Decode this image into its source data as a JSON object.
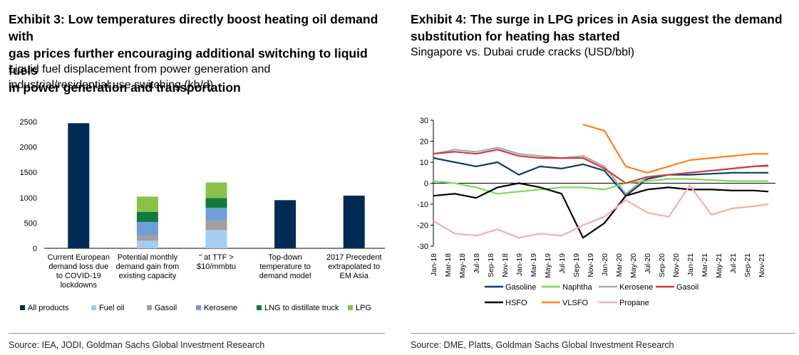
{
  "left": {
    "title_lines": [
      "Exhibit 3: Low temperatures directly boost heating oil demand with",
      "gas prices further encouraging additional switching to liquid fuels",
      "in power generation and transportation"
    ],
    "subtitle_lines": [
      "Liquid fuel displacement from power generation and",
      "industrial/residential use switching (kb/d)"
    ],
    "source": "Source: IEA, JODI, Goldman Sachs Global Investment Research"
  },
  "right": {
    "title_lines": [
      "Exhibit 4: The surge in LPG prices in Asia suggest the demand",
      "substitution for heating has started"
    ],
    "subtitle_lines": [
      "Singapore vs. Dubai crude cracks (USD/bbl)"
    ],
    "source": "Source: DME, Platts, Goldman Sachs Global Investment Research"
  },
  "chart_data": [
    {
      "type": "bar",
      "stacked": true,
      "title": "",
      "xlabel": "",
      "ylabel": "",
      "ylim": [
        0,
        2500
      ],
      "yticks": [
        0,
        500,
        1000,
        1500,
        2000,
        2500
      ],
      "grid": false,
      "legend_position": "bottom",
      "categories": [
        [
          "Current European",
          "demand loss due",
          "to COVID-19",
          "lockdowns"
        ],
        [
          "Potential monthly",
          "demand gain from",
          "existing capacity"
        ],
        [
          "\" at TTF >",
          "$10/mmbtu"
        ],
        [
          "Top-down",
          "temperature to",
          "demand model"
        ],
        [
          "2017 Precedent",
          "extrapolated to",
          "EM Asia"
        ]
      ],
      "series": [
        {
          "name": "All products",
          "color": "#002b54",
          "values": [
            2470,
            0,
            0,
            950,
            1040
          ]
        },
        {
          "name": "Fuel oil",
          "color": "#a6cdf0",
          "values": [
            0,
            150,
            360,
            0,
            0
          ]
        },
        {
          "name": "Gasoil",
          "color": "#a0a0a0",
          "values": [
            0,
            110,
            190,
            0,
            0
          ]
        },
        {
          "name": "Kerosene",
          "color": "#6f9ed6",
          "values": [
            0,
            260,
            250,
            0,
            0
          ]
        },
        {
          "name": "LNG to distillate truck",
          "color": "#127a3d",
          "values": [
            0,
            200,
            190,
            0,
            0
          ]
        },
        {
          "name": "LPG",
          "color": "#8cc04a",
          "values": [
            0,
            300,
            310,
            0,
            0
          ]
        }
      ]
    },
    {
      "type": "line",
      "title": "",
      "xlabel": "",
      "ylabel": "",
      "ylim": [
        -30,
        30
      ],
      "yticks": [
        -30,
        -20,
        -10,
        0,
        10,
        20,
        30
      ],
      "grid": false,
      "legend_position": "bottom",
      "x_tick_labels": [
        "Jan-18",
        "Mar-18",
        "May-18",
        "Jul-18",
        "Sep-18",
        "Nov-18",
        "Jan-19",
        "Mar-19",
        "May-19",
        "Jul-19",
        "Sep-19",
        "Nov-19",
        "Jan-20",
        "Mar-20",
        "May-20",
        "Jul-20",
        "Sep-20",
        "Nov-20",
        "Jan-21",
        "Mar-21",
        "May-21",
        "Jul-21",
        "Sep-21",
        "Nov-21"
      ],
      "x": [
        "Jan-18",
        "Apr-18",
        "Jul-18",
        "Oct-18",
        "Jan-19",
        "Apr-19",
        "Jul-19",
        "Oct-19",
        "Jan-20",
        "Apr-20",
        "Jul-20",
        "Oct-20",
        "Jan-21",
        "Apr-21",
        "Jul-21",
        "Oct-21",
        "Dec-21"
      ],
      "series": [
        {
          "name": "Gasoline",
          "color": "#0b3c64",
          "values": [
            12,
            10,
            8,
            10,
            4,
            8,
            7,
            9,
            6,
            -6,
            2,
            4,
            4,
            4.5,
            5,
            5,
            5
          ]
        },
        {
          "name": "Naphtha",
          "color": "#7ed957",
          "values": [
            1,
            0,
            -2,
            -5,
            -4,
            -3,
            -2,
            -2,
            -3,
            0,
            1,
            2,
            2,
            1.5,
            1,
            1,
            1
          ]
        },
        {
          "name": "Kerosene",
          "color": "#a9a9a9",
          "values": [
            14,
            16,
            15,
            17,
            14,
            13,
            12,
            13,
            8,
            -5,
            3,
            4,
            5,
            6,
            7,
            8,
            8
          ]
        },
        {
          "name": "Gasoil",
          "color": "#d13b3b",
          "values": [
            14,
            15,
            14,
            16,
            13,
            12,
            12,
            12,
            7,
            0,
            3,
            4,
            5,
            6,
            7,
            8,
            8.5
          ]
        },
        {
          "name": "HSFO",
          "color": "#000000",
          "values": [
            -6,
            -5,
            -7,
            -2,
            0,
            -2,
            -5,
            -26,
            -19,
            -6,
            -3,
            -2,
            -3,
            -3,
            -3.5,
            -3.5,
            -4
          ]
        },
        {
          "name": "VLSFO",
          "color": "#ff7f1e",
          "values": [
            null,
            null,
            null,
            null,
            null,
            null,
            null,
            28,
            25,
            8,
            5,
            8,
            11,
            12,
            13,
            14,
            14
          ]
        },
        {
          "name": "Propane",
          "color": "#f3adad",
          "values": [
            -18,
            -24,
            -25,
            -22,
            -26,
            -24,
            -25,
            -20,
            -16,
            -8,
            -14,
            -16,
            -1,
            -15,
            -12,
            -11,
            -10
          ]
        }
      ]
    }
  ]
}
